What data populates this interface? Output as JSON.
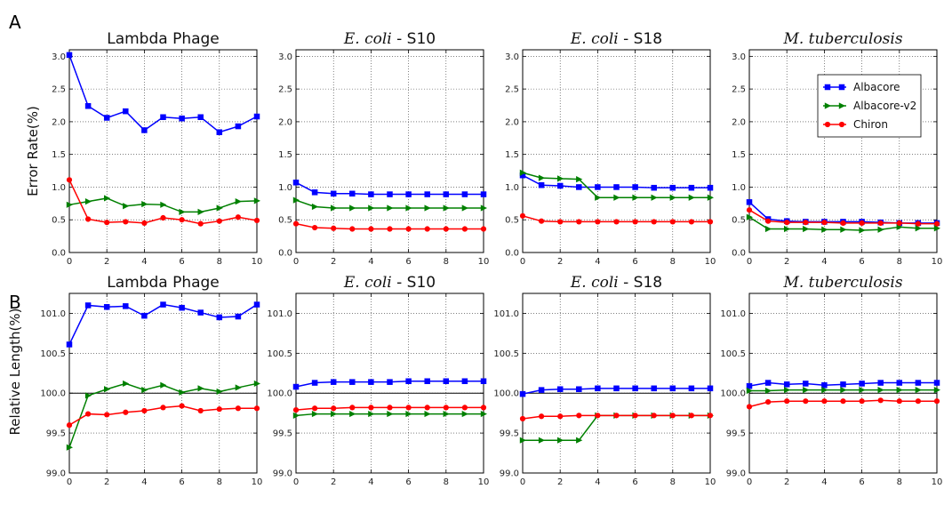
{
  "row_labels": [
    "A",
    "B"
  ],
  "ylabels": [
    "Error Rate(%)",
    "Relative Length(%)"
  ],
  "titles": [
    {
      "italic": "",
      "rest": "Lambda Phage"
    },
    {
      "italic": "E. coli",
      "rest": " - S10"
    },
    {
      "italic": "E. coli",
      "rest": " - S18"
    },
    {
      "italic": "M. tuberculosis",
      "rest": ""
    }
  ],
  "legend": [
    "Albacore",
    "Albacore-v2",
    "Chiron"
  ],
  "colors": {
    "Albacore": "#0000ff",
    "Albacore-v2": "#008000",
    "Chiron": "#ff0000"
  },
  "markers": {
    "Albacore": "square",
    "Albacore-v2": "triangle-right",
    "Chiron": "circle"
  },
  "chart_data": [
    {
      "type": "line",
      "row": "A",
      "title": "Lambda Phage",
      "ylabel": "Error Rate(%)",
      "xlim": [
        0,
        10
      ],
      "ylim": [
        0.0,
        3.1
      ],
      "grid": true,
      "xticks": [
        0,
        2,
        4,
        6,
        8,
        10
      ],
      "yticks": [
        0.0,
        0.5,
        1.0,
        1.5,
        2.0,
        2.5,
        3.0
      ],
      "ytick_labels": [
        "0.0",
        "0.5",
        "1.0",
        "1.5",
        "2.0",
        "2.5",
        "3.0"
      ],
      "x": [
        0,
        1,
        2,
        3,
        4,
        5,
        6,
        7,
        8,
        9,
        10
      ],
      "series": [
        {
          "name": "Albacore",
          "values": [
            3.02,
            2.24,
            2.06,
            2.16,
            1.87,
            2.07,
            2.05,
            2.07,
            1.84,
            1.93,
            2.08
          ]
        },
        {
          "name": "Albacore-v2",
          "values": [
            0.73,
            0.78,
            0.83,
            0.71,
            0.74,
            0.73,
            0.62,
            0.62,
            0.68,
            0.78,
            0.79
          ]
        },
        {
          "name": "Chiron",
          "values": [
            1.11,
            0.51,
            0.46,
            0.47,
            0.45,
            0.53,
            0.5,
            0.44,
            0.48,
            0.54,
            0.49
          ]
        }
      ]
    },
    {
      "type": "line",
      "row": "A",
      "title": "E. coli - S10",
      "ylabel": "",
      "xlim": [
        0,
        10
      ],
      "ylim": [
        0.0,
        3.1
      ],
      "grid": true,
      "xticks": [
        0,
        2,
        4,
        6,
        8,
        10
      ],
      "yticks": [
        0.0,
        0.5,
        1.0,
        1.5,
        2.0,
        2.5,
        3.0
      ],
      "ytick_labels": [
        "0.0",
        "0.5",
        "1.0",
        "1.5",
        "2.0",
        "2.5",
        "3.0"
      ],
      "x": [
        0,
        1,
        2,
        3,
        4,
        5,
        6,
        7,
        8,
        9,
        10
      ],
      "series": [
        {
          "name": "Albacore",
          "values": [
            1.07,
            0.92,
            0.9,
            0.9,
            0.89,
            0.89,
            0.89,
            0.89,
            0.89,
            0.89,
            0.89
          ]
        },
        {
          "name": "Albacore-v2",
          "values": [
            0.8,
            0.7,
            0.68,
            0.68,
            0.68,
            0.68,
            0.68,
            0.68,
            0.68,
            0.68,
            0.68
          ]
        },
        {
          "name": "Chiron",
          "values": [
            0.44,
            0.38,
            0.37,
            0.36,
            0.36,
            0.36,
            0.36,
            0.36,
            0.36,
            0.36,
            0.36
          ]
        }
      ]
    },
    {
      "type": "line",
      "row": "A",
      "title": "E. coli - S18",
      "ylabel": "",
      "xlim": [
        0,
        10
      ],
      "ylim": [
        0.0,
        3.1
      ],
      "grid": true,
      "xticks": [
        0,
        2,
        4,
        6,
        8,
        10
      ],
      "yticks": [
        0.0,
        0.5,
        1.0,
        1.5,
        2.0,
        2.5,
        3.0
      ],
      "ytick_labels": [
        "0.0",
        "0.5",
        "1.0",
        "1.5",
        "2.0",
        "2.5",
        "3.0"
      ],
      "x": [
        0,
        1,
        2,
        3,
        4,
        5,
        6,
        7,
        8,
        9,
        10
      ],
      "series": [
        {
          "name": "Albacore",
          "values": [
            1.18,
            1.03,
            1.02,
            1.0,
            1.0,
            1.0,
            1.0,
            0.99,
            0.99,
            0.99,
            0.99
          ]
        },
        {
          "name": "Albacore-v2",
          "values": [
            1.22,
            1.14,
            1.13,
            1.12,
            0.84,
            0.84,
            0.84,
            0.84,
            0.84,
            0.84,
            0.84
          ]
        },
        {
          "name": "Chiron",
          "values": [
            0.56,
            0.48,
            0.47,
            0.47,
            0.47,
            0.47,
            0.47,
            0.47,
            0.47,
            0.47,
            0.47
          ]
        }
      ]
    },
    {
      "type": "line",
      "row": "A",
      "title": "M. tuberculosis",
      "ylabel": "",
      "xlim": [
        0,
        10
      ],
      "ylim": [
        0.0,
        3.1
      ],
      "grid": true,
      "legend_position": "top-right",
      "xticks": [
        0,
        2,
        4,
        6,
        8,
        10
      ],
      "yticks": [
        0.0,
        0.5,
        1.0,
        1.5,
        2.0,
        2.5,
        3.0
      ],
      "ytick_labels": [
        "0.0",
        "0.5",
        "1.0",
        "1.5",
        "2.0",
        "2.5",
        "3.0"
      ],
      "x": [
        0,
        1,
        2,
        3,
        4,
        5,
        6,
        7,
        8,
        9,
        10
      ],
      "series": [
        {
          "name": "Albacore",
          "values": [
            0.77,
            0.51,
            0.48,
            0.47,
            0.47,
            0.47,
            0.47,
            0.46,
            0.45,
            0.45,
            0.45
          ]
        },
        {
          "name": "Albacore-v2",
          "values": [
            0.54,
            0.36,
            0.36,
            0.36,
            0.35,
            0.35,
            0.34,
            0.35,
            0.39,
            0.37,
            0.37
          ]
        },
        {
          "name": "Chiron",
          "values": [
            0.65,
            0.48,
            0.46,
            0.46,
            0.46,
            0.45,
            0.45,
            0.45,
            0.45,
            0.44,
            0.44
          ]
        }
      ]
    },
    {
      "type": "line",
      "row": "B",
      "title": "Lambda Phage",
      "ylabel": "Relative Length(%)",
      "xlim": [
        0,
        10
      ],
      "ylim": [
        99.0,
        101.25
      ],
      "grid": true,
      "reference_line": 100.0,
      "xticks": [
        0,
        2,
        4,
        6,
        8,
        10
      ],
      "yticks": [
        99.0,
        99.5,
        100.0,
        100.5,
        101.0
      ],
      "ytick_labels": [
        "99.0",
        "99.5",
        "100.0",
        "100.5",
        "101.0"
      ],
      "x": [
        0,
        1,
        2,
        3,
        4,
        5,
        6,
        7,
        8,
        9,
        10
      ],
      "series": [
        {
          "name": "Albacore",
          "values": [
            100.61,
            101.1,
            101.08,
            101.09,
            100.97,
            101.11,
            101.07,
            101.01,
            100.95,
            100.96,
            101.11
          ]
        },
        {
          "name": "Albacore-v2",
          "values": [
            99.32,
            99.97,
            100.05,
            100.12,
            100.04,
            100.1,
            100.01,
            100.06,
            100.02,
            100.07,
            100.12
          ]
        },
        {
          "name": "Chiron",
          "values": [
            99.6,
            99.74,
            99.73,
            99.76,
            99.78,
            99.82,
            99.84,
            99.78,
            99.8,
            99.81,
            99.81
          ]
        }
      ]
    },
    {
      "type": "line",
      "row": "B",
      "title": "E. coli - S10",
      "ylabel": "",
      "xlim": [
        0,
        10
      ],
      "ylim": [
        99.0,
        101.25
      ],
      "grid": true,
      "reference_line": 100.0,
      "xticks": [
        0,
        2,
        4,
        6,
        8,
        10
      ],
      "yticks": [
        99.0,
        99.5,
        100.0,
        100.5,
        101.0
      ],
      "ytick_labels": [
        "99.0",
        "99.5",
        "100.0",
        "100.5",
        "101.0"
      ],
      "x": [
        0,
        1,
        2,
        3,
        4,
        5,
        6,
        7,
        8,
        9,
        10
      ],
      "series": [
        {
          "name": "Albacore",
          "values": [
            100.08,
            100.13,
            100.14,
            100.14,
            100.14,
            100.14,
            100.15,
            100.15,
            100.15,
            100.15,
            100.15
          ]
        },
        {
          "name": "Albacore-v2",
          "values": [
            99.72,
            99.74,
            99.74,
            99.74,
            99.74,
            99.74,
            99.74,
            99.74,
            99.74,
            99.74,
            99.74
          ]
        },
        {
          "name": "Chiron",
          "values": [
            99.79,
            99.81,
            99.81,
            99.82,
            99.82,
            99.82,
            99.82,
            99.82,
            99.82,
            99.82,
            99.82
          ]
        }
      ]
    },
    {
      "type": "line",
      "row": "B",
      "title": "E. coli - S18",
      "ylabel": "",
      "xlim": [
        0,
        10
      ],
      "ylim": [
        99.0,
        101.25
      ],
      "grid": true,
      "reference_line": 100.0,
      "xticks": [
        0,
        2,
        4,
        6,
        8,
        10
      ],
      "yticks": [
        99.0,
        99.5,
        100.0,
        100.5,
        101.0
      ],
      "ytick_labels": [
        "99.0",
        "99.5",
        "100.0",
        "100.5",
        "101.0"
      ],
      "x": [
        0,
        1,
        2,
        3,
        4,
        5,
        6,
        7,
        8,
        9,
        10
      ],
      "series": [
        {
          "name": "Albacore",
          "values": [
            99.99,
            100.04,
            100.05,
            100.05,
            100.06,
            100.06,
            100.06,
            100.06,
            100.06,
            100.06,
            100.06
          ]
        },
        {
          "name": "Albacore-v2",
          "values": [
            99.41,
            99.41,
            99.41,
            99.41,
            99.72,
            99.72,
            99.72,
            99.72,
            99.72,
            99.72,
            99.72
          ]
        },
        {
          "name": "Chiron",
          "values": [
            99.68,
            99.71,
            99.71,
            99.72,
            99.72,
            99.72,
            99.72,
            99.72,
            99.72,
            99.72,
            99.72
          ]
        }
      ]
    },
    {
      "type": "line",
      "row": "B",
      "title": "M. tuberculosis",
      "ylabel": "",
      "xlim": [
        0,
        10
      ],
      "ylim": [
        99.0,
        101.25
      ],
      "grid": true,
      "reference_line": 100.0,
      "xticks": [
        0,
        2,
        4,
        6,
        8,
        10
      ],
      "yticks": [
        99.0,
        99.5,
        100.0,
        100.5,
        101.0
      ],
      "ytick_labels": [
        "99.0",
        "99.5",
        "100.0",
        "100.5",
        "101.0"
      ],
      "x": [
        0,
        1,
        2,
        3,
        4,
        5,
        6,
        7,
        8,
        9,
        10
      ],
      "series": [
        {
          "name": "Albacore",
          "values": [
            100.09,
            100.13,
            100.11,
            100.12,
            100.1,
            100.11,
            100.12,
            100.13,
            100.13,
            100.13,
            100.13
          ]
        },
        {
          "name": "Albacore-v2",
          "values": [
            100.03,
            100.03,
            100.04,
            100.04,
            100.04,
            100.04,
            100.04,
            100.04,
            100.04,
            100.04,
            100.04
          ]
        },
        {
          "name": "Chiron",
          "values": [
            99.83,
            99.89,
            99.9,
            99.9,
            99.9,
            99.9,
            99.9,
            99.91,
            99.9,
            99.9,
            99.9
          ]
        }
      ]
    }
  ]
}
